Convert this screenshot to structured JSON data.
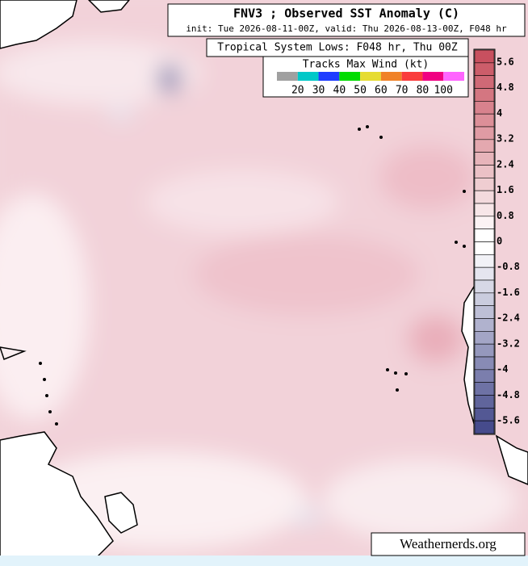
{
  "header": {
    "title": "FNV3 ; Observed SST Anomaly (C)",
    "subtitle": "init: Tue 2026-08-11-00Z, valid: Thu 2026-08-13-00Z, F048 hr"
  },
  "lows_label": "Tropical System Lows: F048 hr, Thu 00Z",
  "tracks_legend": {
    "title": "Tracks Max Wind (kt)",
    "labels": [
      "20",
      "30",
      "40",
      "50",
      "60",
      "70",
      "80",
      "100"
    ]
  },
  "colorbar": {
    "labels": [
      "5.6",
      "4.8",
      "4",
      "3.2",
      "2.4",
      "1.6",
      "0.8",
      "0",
      "-0.8",
      "-1.6",
      "-2.4",
      "-3.2",
      "-4",
      "-4.8",
      "-5.6"
    ]
  },
  "watermark": "Weathernerds.org"
}
